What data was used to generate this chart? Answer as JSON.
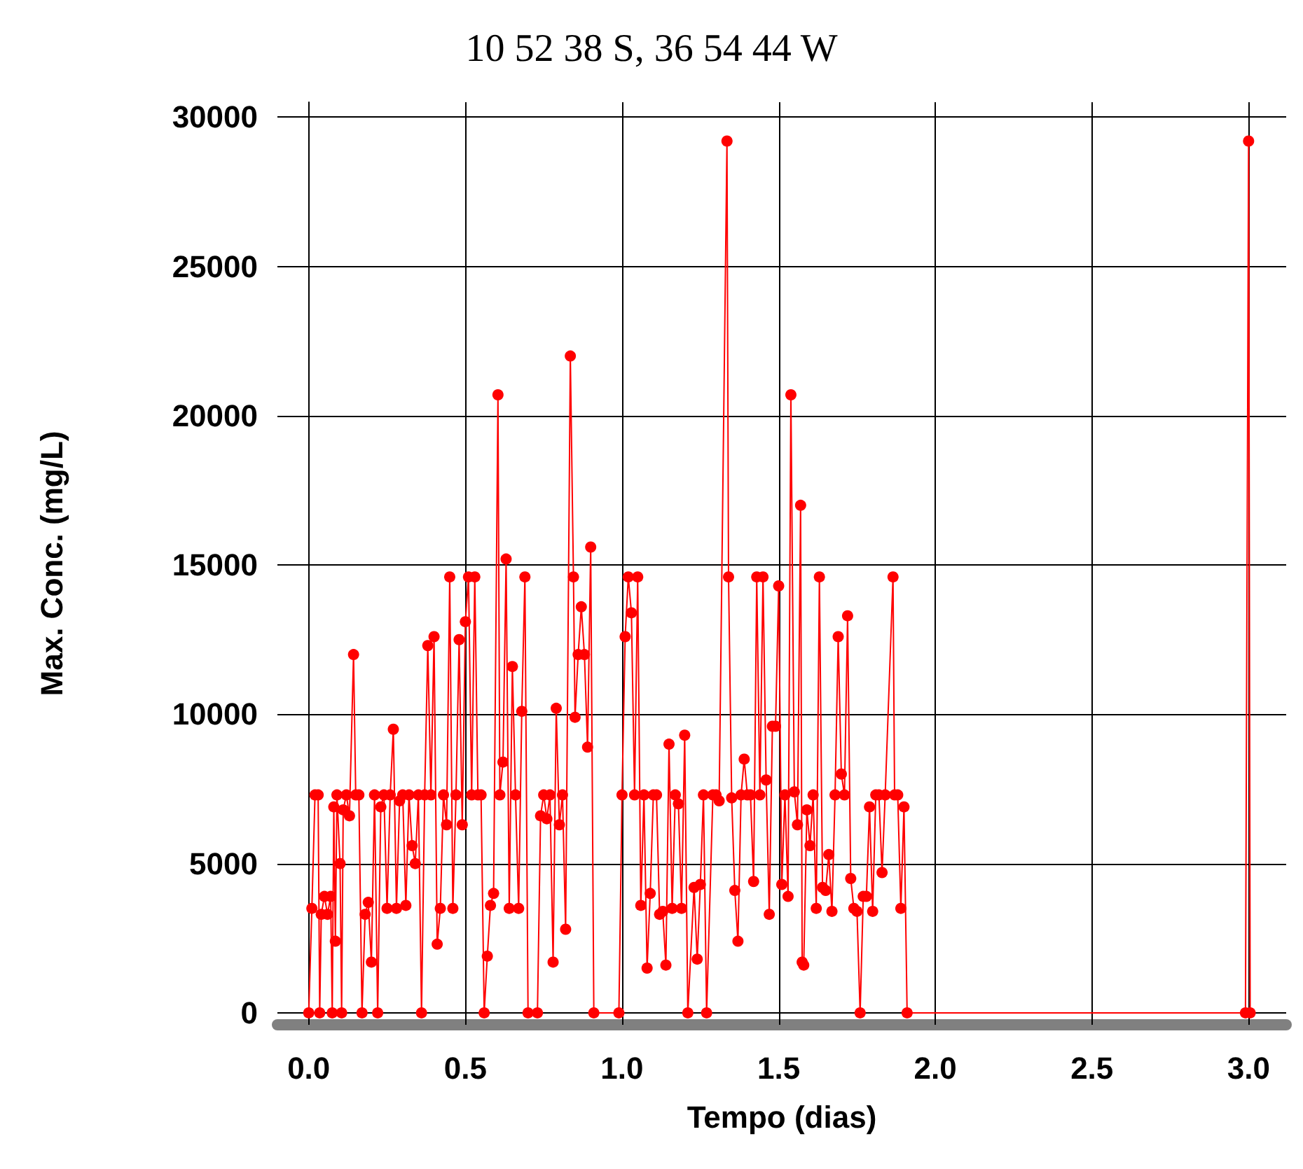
{
  "chart_data": {
    "type": "line",
    "title": "10 52 38 S, 36 54 44 W",
    "xlabel": "Tempo (dias)",
    "ylabel": "Max. Conc. (mg/L)",
    "xlim": [
      -0.1,
      3.12
    ],
    "ylim": [
      -400,
      30500
    ],
    "xticks": [
      {
        "value": 0,
        "label": "0.0"
      },
      {
        "value": 0.5,
        "label": "0.5"
      },
      {
        "value": 1,
        "label": "1.0"
      },
      {
        "value": 1.5,
        "label": "1.5"
      },
      {
        "value": 2,
        "label": "2.0"
      },
      {
        "value": 2.5,
        "label": "2.5"
      },
      {
        "value": 3,
        "label": "3.0"
      }
    ],
    "yticks": [
      0,
      5000,
      10000,
      15000,
      20000,
      25000,
      30000
    ],
    "grid": true,
    "marker": "circle",
    "line_style": "solid",
    "series": [
      {
        "color": "#ff0000",
        "x": [
          0,
          0.01,
          0.02,
          0.03,
          0.035,
          0.04,
          0.05,
          0.06,
          0.07,
          0.075,
          0.08,
          0.085,
          0.09,
          0.1,
          0.105,
          0.11,
          0.12,
          0.13,
          0.143,
          0.15,
          0.16,
          0.17,
          0.18,
          0.19,
          0.2,
          0.21,
          0.22,
          0.23,
          0.24,
          0.25,
          0.26,
          0.27,
          0.28,
          0.29,
          0.3,
          0.31,
          0.32,
          0.33,
          0.34,
          0.35,
          0.36,
          0.37,
          0.38,
          0.39,
          0.4,
          0.41,
          0.42,
          0.43,
          0.44,
          0.45,
          0.46,
          0.47,
          0.48,
          0.49,
          0.5,
          0.51,
          0.52,
          0.53,
          0.54,
          0.55,
          0.56,
          0.57,
          0.58,
          0.59,
          0.604,
          0.61,
          0.62,
          0.63,
          0.64,
          0.65,
          0.66,
          0.67,
          0.68,
          0.69,
          0.7,
          0.73,
          0.74,
          0.75,
          0.76,
          0.77,
          0.78,
          0.79,
          0.8,
          0.81,
          0.82,
          0.835,
          0.845,
          0.85,
          0.86,
          0.87,
          0.88,
          0.89,
          0.9,
          0.91,
          0.99,
          1.0,
          1.01,
          1.02,
          1.03,
          1.04,
          1.05,
          1.06,
          1.07,
          1.08,
          1.09,
          1.1,
          1.11,
          1.12,
          1.13,
          1.14,
          1.15,
          1.16,
          1.17,
          1.18,
          1.19,
          1.2,
          1.21,
          1.23,
          1.24,
          1.25,
          1.26,
          1.27,
          1.29,
          1.3,
          1.31,
          1.335,
          1.34,
          1.35,
          1.36,
          1.37,
          1.38,
          1.39,
          1.4,
          1.41,
          1.42,
          1.43,
          1.44,
          1.45,
          1.46,
          1.47,
          1.48,
          1.49,
          1.5,
          1.51,
          1.52,
          1.53,
          1.539,
          1.55,
          1.56,
          1.57,
          1.575,
          1.58,
          1.59,
          1.6,
          1.61,
          1.62,
          1.63,
          1.64,
          1.65,
          1.66,
          1.67,
          1.68,
          1.69,
          1.7,
          1.71,
          1.72,
          1.73,
          1.74,
          1.75,
          1.76,
          1.77,
          1.78,
          1.79,
          1.8,
          1.81,
          1.82,
          1.83,
          1.84,
          1.865,
          1.87,
          1.88,
          1.89,
          1.9,
          1.91,
          2.99,
          3.0,
          3.005
        ],
        "values": [
          0,
          3500,
          7300,
          7300,
          0,
          3300,
          3900,
          3300,
          3900,
          0,
          6900,
          2400,
          7300,
          5000,
          0,
          6800,
          7300,
          6600,
          12000,
          7300,
          7300,
          0,
          3300,
          3700,
          1700,
          7300,
          0,
          6900,
          7300,
          3500,
          7300,
          9500,
          3500,
          7100,
          7300,
          3600,
          7300,
          5600,
          5000,
          7300,
          0,
          7300,
          12300,
          7300,
          12600,
          2300,
          3500,
          7300,
          6300,
          14600,
          3500,
          7300,
          12500,
          6300,
          13100,
          14600,
          7300,
          14600,
          7300,
          7300,
          0,
          1900,
          3600,
          4000,
          20700,
          7300,
          8400,
          15200,
          3500,
          11600,
          7300,
          3500,
          10100,
          14600,
          0,
          0,
          6600,
          7300,
          6500,
          7300,
          1700,
          10200,
          6300,
          7300,
          2800,
          22000,
          14600,
          9900,
          12000,
          13600,
          12000,
          8900,
          15600,
          0,
          0,
          7300,
          12600,
          14600,
          13400,
          7300,
          14600,
          3600,
          7300,
          1500,
          4000,
          7300,
          7300,
          3300,
          3400,
          1600,
          9000,
          3500,
          7300,
          7000,
          3500,
          9300,
          0,
          4200,
          1800,
          4300,
          7300,
          0,
          7300,
          7300,
          7100,
          29200,
          14600,
          7200,
          4100,
          2400,
          7300,
          8500,
          7300,
          7300,
          4400,
          14600,
          7300,
          14600,
          7800,
          3300,
          9600,
          9600,
          14300,
          4300,
          7300,
          3900,
          20700,
          7400,
          6300,
          17000,
          1700,
          1600,
          6800,
          5600,
          7300,
          3500,
          14600,
          4200,
          4100,
          5300,
          3400,
          7300,
          12600,
          8000,
          7300,
          13300,
          4500,
          3500,
          3400,
          0,
          3900,
          3900,
          6900,
          3400,
          7300,
          7300,
          4700,
          7300,
          14600,
          7300,
          7300,
          3500,
          6900,
          0,
          0,
          29200,
          0
        ]
      }
    ]
  }
}
